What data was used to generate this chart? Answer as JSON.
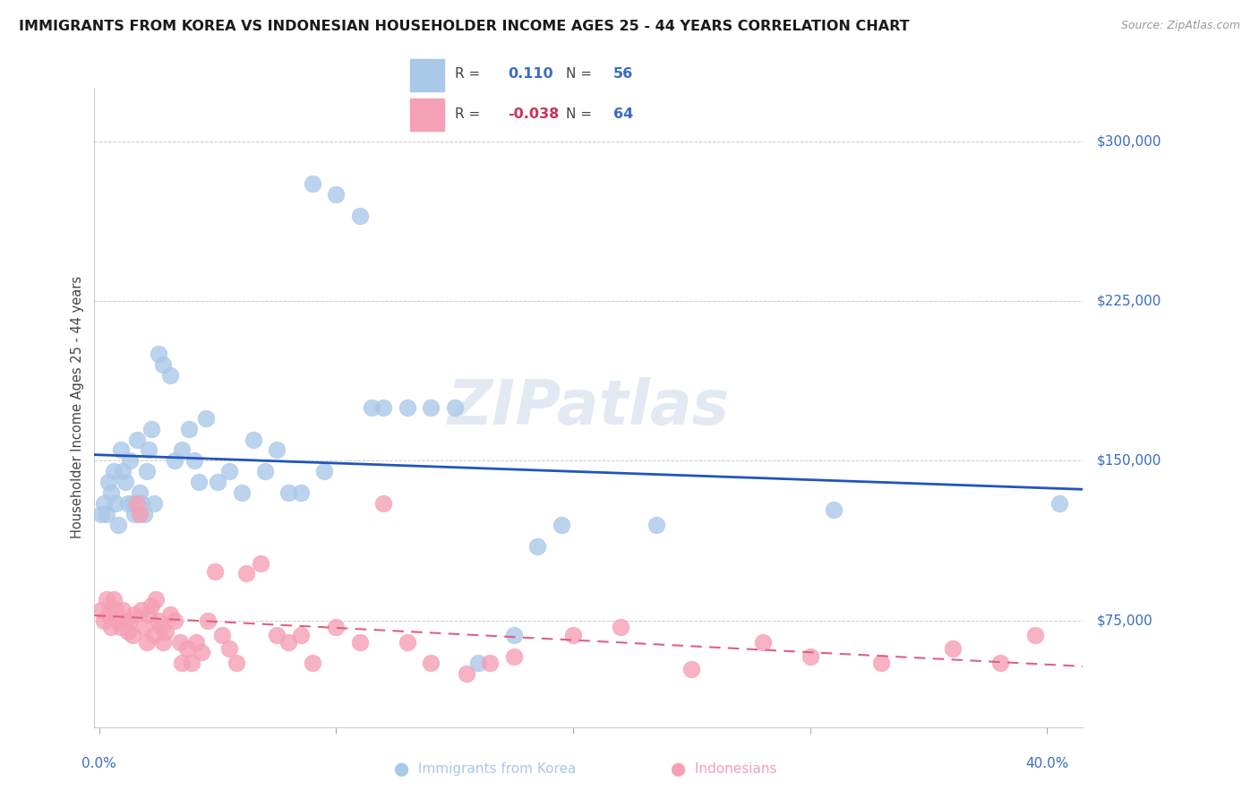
{
  "title": "IMMIGRANTS FROM KOREA VS INDONESIAN HOUSEHOLDER INCOME AGES 25 - 44 YEARS CORRELATION CHART",
  "source": "Source: ZipAtlas.com",
  "ylabel": "Householder Income Ages 25 - 44 years",
  "ytick_values": [
    75000,
    150000,
    225000,
    300000
  ],
  "ytick_labels": [
    "$75,000",
    "$150,000",
    "$225,000",
    "$300,000"
  ],
  "ymin": 25000,
  "ymax": 325000,
  "xmin": -0.002,
  "xmax": 0.415,
  "legend_korea_r": "0.110",
  "legend_korea_n": "56",
  "legend_indo_r": "-0.038",
  "legend_indo_n": "64",
  "korea_color": "#aac8e8",
  "indo_color": "#f5a0b5",
  "korea_line_color": "#2255bb",
  "indo_line_color": "#e06080",
  "watermark": "ZIPatlas",
  "korea_x": [
    0.001,
    0.002,
    0.003,
    0.004,
    0.005,
    0.006,
    0.007,
    0.008,
    0.009,
    0.01,
    0.011,
    0.012,
    0.013,
    0.014,
    0.015,
    0.016,
    0.017,
    0.018,
    0.019,
    0.02,
    0.021,
    0.022,
    0.023,
    0.025,
    0.027,
    0.03,
    0.032,
    0.035,
    0.038,
    0.04,
    0.042,
    0.045,
    0.05,
    0.055,
    0.06,
    0.065,
    0.07,
    0.075,
    0.08,
    0.085,
    0.09,
    0.095,
    0.1,
    0.11,
    0.115,
    0.12,
    0.13,
    0.14,
    0.15,
    0.16,
    0.175,
    0.185,
    0.195,
    0.235,
    0.31,
    0.405
  ],
  "korea_y": [
    125000,
    130000,
    125000,
    140000,
    135000,
    145000,
    130000,
    120000,
    155000,
    145000,
    140000,
    130000,
    150000,
    130000,
    125000,
    160000,
    135000,
    130000,
    125000,
    145000,
    155000,
    165000,
    130000,
    200000,
    195000,
    190000,
    150000,
    155000,
    165000,
    150000,
    140000,
    170000,
    140000,
    145000,
    135000,
    160000,
    145000,
    155000,
    135000,
    135000,
    280000,
    145000,
    275000,
    265000,
    175000,
    175000,
    175000,
    175000,
    175000,
    55000,
    68000,
    110000,
    120000,
    120000,
    127000,
    130000
  ],
  "indo_x": [
    0.001,
    0.002,
    0.003,
    0.004,
    0.005,
    0.006,
    0.007,
    0.008,
    0.009,
    0.01,
    0.011,
    0.012,
    0.013,
    0.014,
    0.015,
    0.016,
    0.017,
    0.018,
    0.019,
    0.02,
    0.021,
    0.022,
    0.023,
    0.024,
    0.025,
    0.026,
    0.027,
    0.028,
    0.03,
    0.032,
    0.034,
    0.035,
    0.037,
    0.039,
    0.041,
    0.043,
    0.046,
    0.049,
    0.052,
    0.055,
    0.058,
    0.062,
    0.068,
    0.075,
    0.08,
    0.085,
    0.09,
    0.1,
    0.11,
    0.12,
    0.13,
    0.14,
    0.155,
    0.165,
    0.175,
    0.2,
    0.22,
    0.25,
    0.28,
    0.3,
    0.33,
    0.36,
    0.38,
    0.395
  ],
  "indo_y": [
    80000,
    75000,
    85000,
    78000,
    72000,
    85000,
    80000,
    75000,
    72000,
    80000,
    75000,
    70000,
    75000,
    68000,
    78000,
    130000,
    125000,
    80000,
    72000,
    65000,
    78000,
    82000,
    68000,
    85000,
    75000,
    72000,
    65000,
    70000,
    78000,
    75000,
    65000,
    55000,
    62000,
    55000,
    65000,
    60000,
    75000,
    98000,
    68000,
    62000,
    55000,
    97000,
    102000,
    68000,
    65000,
    68000,
    55000,
    72000,
    65000,
    130000,
    65000,
    55000,
    50000,
    55000,
    58000,
    68000,
    72000,
    52000,
    65000,
    58000,
    55000,
    62000,
    55000,
    68000
  ]
}
